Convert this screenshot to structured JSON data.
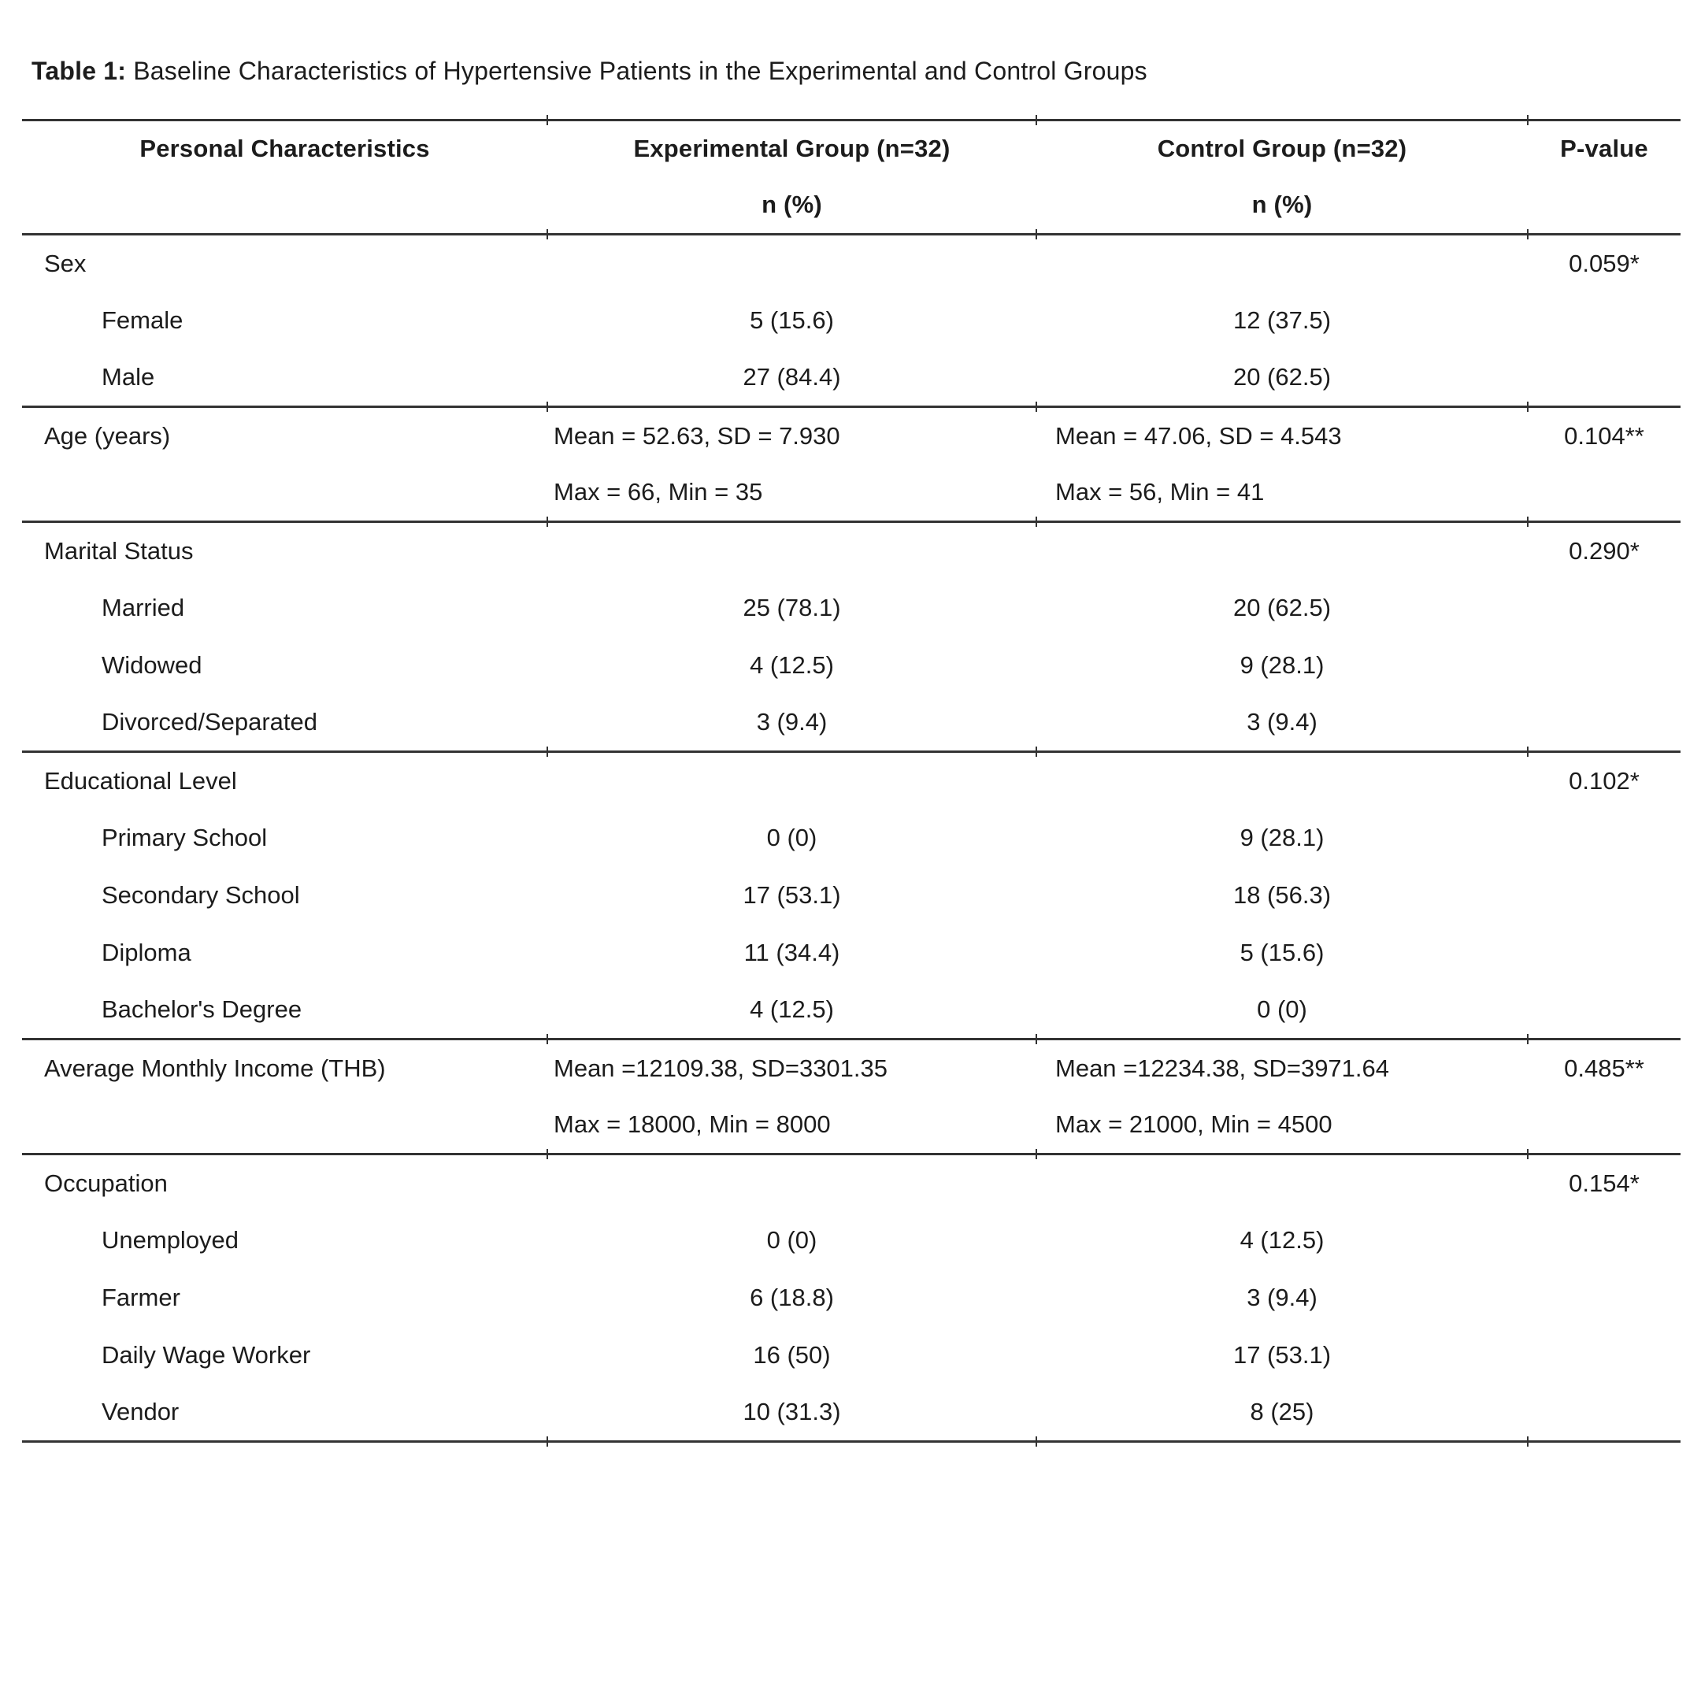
{
  "caption": {
    "label": "Table 1:",
    "text": "Baseline Characteristics of Hypertensive Patients in the Experimental and Control Groups"
  },
  "table": {
    "header": {
      "col1": "Personal Characteristics",
      "col2": "Experimental Group (n=32)",
      "col3": "Control Group (n=32)",
      "col4": "P-value",
      "sub2": "n (%)",
      "sub3": "n (%)"
    },
    "sections": [
      {
        "name": "sex",
        "rows": [
          {
            "label": "Sex",
            "indent": false,
            "exp": "",
            "ctrl": "",
            "p": "0.059*",
            "align": "center"
          },
          {
            "label": "Female",
            "indent": true,
            "exp": "5 (15.6)",
            "ctrl": "12 (37.5)",
            "p": "",
            "align": "center"
          },
          {
            "label": "Male",
            "indent": true,
            "exp": "27 (84.4)",
            "ctrl": "20 (62.5)",
            "p": "",
            "align": "center"
          }
        ]
      },
      {
        "name": "age",
        "rows": [
          {
            "label": "Age (years)",
            "indent": false,
            "exp": "Mean = 52.63, SD = 7.930",
            "ctrl": "Mean = 47.06, SD = 4.543",
            "p": "0.104**",
            "align": "left"
          },
          {
            "label": "",
            "indent": false,
            "exp": "Max = 66, Min = 35",
            "ctrl": "Max = 56, Min = 41",
            "p": "",
            "align": "left"
          }
        ]
      },
      {
        "name": "marital-status",
        "rows": [
          {
            "label": "Marital Status",
            "indent": false,
            "exp": "",
            "ctrl": "",
            "p": "0.290*",
            "align": "center"
          },
          {
            "label": "Married",
            "indent": true,
            "exp": "25 (78.1)",
            "ctrl": "20 (62.5)",
            "p": "",
            "align": "center"
          },
          {
            "label": "Widowed",
            "indent": true,
            "exp": "4 (12.5)",
            "ctrl": "9 (28.1)",
            "p": "",
            "align": "center"
          },
          {
            "label": "Divorced/Separated",
            "indent": true,
            "exp": "3 (9.4)",
            "ctrl": "3 (9.4)",
            "p": "",
            "align": "center"
          }
        ]
      },
      {
        "name": "educational-level",
        "rows": [
          {
            "label": "Educational Level",
            "indent": false,
            "exp": "",
            "ctrl": "",
            "p": "0.102*",
            "align": "center"
          },
          {
            "label": "Primary School",
            "indent": true,
            "exp": "0 (0)",
            "ctrl": "9 (28.1)",
            "p": "",
            "align": "center"
          },
          {
            "label": "Secondary School",
            "indent": true,
            "exp": "17 (53.1)",
            "ctrl": "18 (56.3)",
            "p": "",
            "align": "center"
          },
          {
            "label": "Diploma",
            "indent": true,
            "exp": "11 (34.4)",
            "ctrl": "5 (15.6)",
            "p": "",
            "align": "center"
          },
          {
            "label": "Bachelor's Degree",
            "indent": true,
            "exp": "4 (12.5)",
            "ctrl": "0 (0)",
            "p": "",
            "align": "center"
          }
        ]
      },
      {
        "name": "average-monthly-income",
        "rows": [
          {
            "label": "Average Monthly Income (THB)",
            "indent": false,
            "exp": "Mean =12109.38, SD=3301.35",
            "ctrl": "Mean =12234.38, SD=3971.64",
            "p": "0.485**",
            "align": "left"
          },
          {
            "label": "",
            "indent": false,
            "exp": "Max = 18000, Min = 8000",
            "ctrl": "Max = 21000, Min = 4500",
            "p": "",
            "align": "left"
          }
        ]
      },
      {
        "name": "occupation",
        "rows": [
          {
            "label": "Occupation",
            "indent": false,
            "exp": "",
            "ctrl": "",
            "p": "0.154*",
            "align": "center"
          },
          {
            "label": "Unemployed",
            "indent": true,
            "exp": "0 (0)",
            "ctrl": "4 (12.5)",
            "p": "",
            "align": "center"
          },
          {
            "label": "Farmer",
            "indent": true,
            "exp": "6 (18.8)",
            "ctrl": "3 (9.4)",
            "p": "",
            "align": "center"
          },
          {
            "label": "Daily Wage Worker",
            "indent": true,
            "exp": "16 (50)",
            "ctrl": "17 (53.1)",
            "p": "",
            "align": "center"
          },
          {
            "label": "Vendor",
            "indent": true,
            "exp": "10 (31.3)",
            "ctrl": "8 (25)",
            "p": "",
            "align": "center"
          }
        ]
      }
    ],
    "colors": {
      "text": "#1c1c1c",
      "rule": "#333333",
      "background": "#ffffff"
    }
  }
}
